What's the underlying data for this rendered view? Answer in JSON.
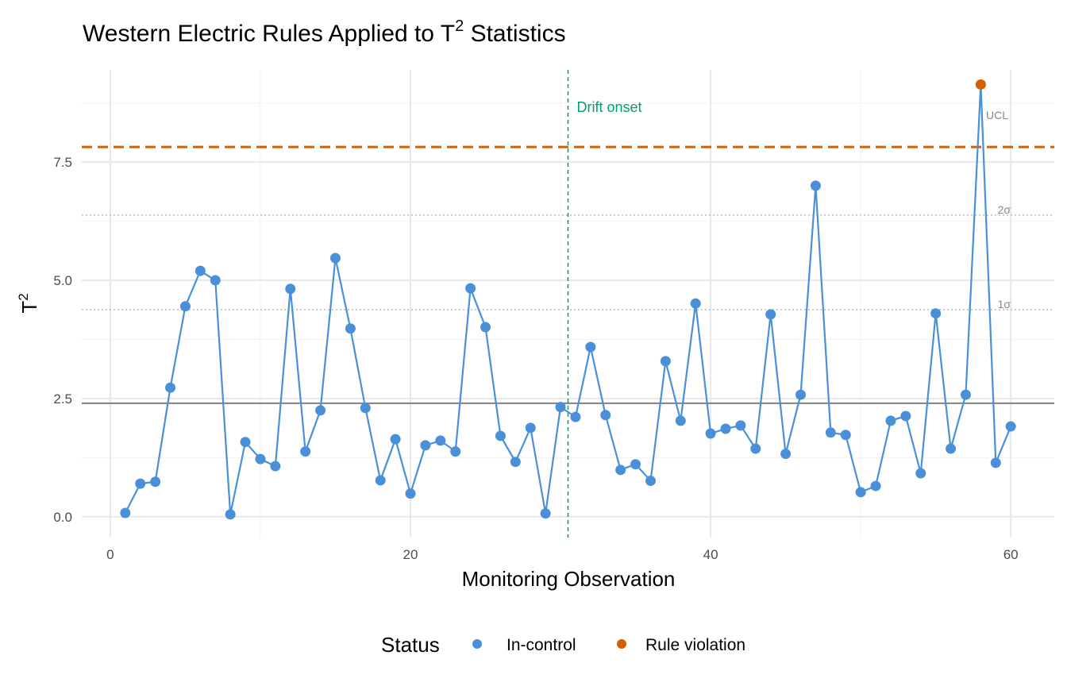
{
  "chart_data": {
    "type": "line",
    "title": "Western Electric Rules Applied to T",
    "title_sup": "2",
    "title_suffix": " Statistics",
    "xlabel": "Monitoring Observation",
    "ylabel": "T",
    "ylabel_sup": "2",
    "xlim": [
      -1.9,
      62.9
    ],
    "ylim": [
      -0.44,
      9.45
    ],
    "xticks": [
      0,
      20,
      40,
      60
    ],
    "xtick_labels": [
      "0",
      "20",
      "40",
      "60"
    ],
    "yticks": [
      0,
      2.5,
      5,
      7.5
    ],
    "ytick_labels": [
      "0.0",
      "2.5",
      "5.0",
      "7.5"
    ],
    "grid": true,
    "x": [
      1,
      2,
      3,
      4,
      5,
      6,
      7,
      8,
      9,
      10,
      11,
      12,
      13,
      14,
      15,
      16,
      17,
      18,
      19,
      20,
      21,
      22,
      23,
      24,
      25,
      26,
      27,
      28,
      29,
      30,
      31,
      32,
      33,
      34,
      35,
      36,
      37,
      38,
      39,
      40,
      41,
      42,
      43,
      44,
      45,
      46,
      47,
      48,
      49,
      50,
      51,
      52,
      53,
      54,
      55,
      56,
      57,
      58,
      59,
      60
    ],
    "y": [
      0.08,
      0.7,
      0.74,
      2.73,
      4.45,
      5.2,
      5.0,
      0.05,
      1.58,
      1.22,
      1.07,
      4.82,
      1.38,
      2.25,
      5.47,
      3.98,
      2.3,
      0.77,
      1.64,
      0.49,
      1.51,
      1.61,
      1.38,
      4.83,
      4.01,
      1.71,
      1.16,
      1.88,
      0.07,
      2.32,
      2.11,
      3.59,
      2.15,
      0.99,
      1.11,
      0.76,
      3.29,
      2.03,
      4.51,
      1.76,
      1.86,
      1.93,
      1.44,
      4.28,
      1.33,
      2.58,
      7.0,
      1.78,
      1.73,
      0.52,
      0.65,
      2.03,
      2.13,
      0.92,
      4.3,
      1.44,
      2.58,
      9.14,
      1.14,
      1.91
    ],
    "status": [
      "In-control",
      "In-control",
      "In-control",
      "In-control",
      "In-control",
      "In-control",
      "In-control",
      "In-control",
      "In-control",
      "In-control",
      "In-control",
      "In-control",
      "In-control",
      "In-control",
      "In-control",
      "In-control",
      "In-control",
      "In-control",
      "In-control",
      "In-control",
      "In-control",
      "In-control",
      "In-control",
      "In-control",
      "In-control",
      "In-control",
      "In-control",
      "In-control",
      "In-control",
      "In-control",
      "In-control",
      "In-control",
      "In-control",
      "In-control",
      "In-control",
      "In-control",
      "In-control",
      "In-control",
      "In-control",
      "In-control",
      "In-control",
      "In-control",
      "In-control",
      "In-control",
      "In-control",
      "In-control",
      "In-control",
      "In-control",
      "In-control",
      "In-control",
      "In-control",
      "In-control",
      "In-control",
      "In-control",
      "In-control",
      "In-control",
      "In-control",
      "Rule violation",
      "In-control",
      "In-control"
    ],
    "reference_lines": {
      "ucl": {
        "value": 7.82,
        "label": "UCL",
        "color": "#D55E00"
      },
      "sigma2": {
        "value": 6.38,
        "label": "2σ"
      },
      "sigma1": {
        "value": 4.38,
        "label": "1σ"
      },
      "center": {
        "value": 2.4
      }
    },
    "drift": {
      "x": 30.5,
      "label": "Drift onset",
      "color": "#009E73"
    },
    "legend": {
      "title": "Status",
      "position": "bottom",
      "entries": [
        {
          "label": "In-control",
          "color": "#4A90D9"
        },
        {
          "label": "Rule violation",
          "color": "#D55E00"
        }
      ]
    }
  }
}
